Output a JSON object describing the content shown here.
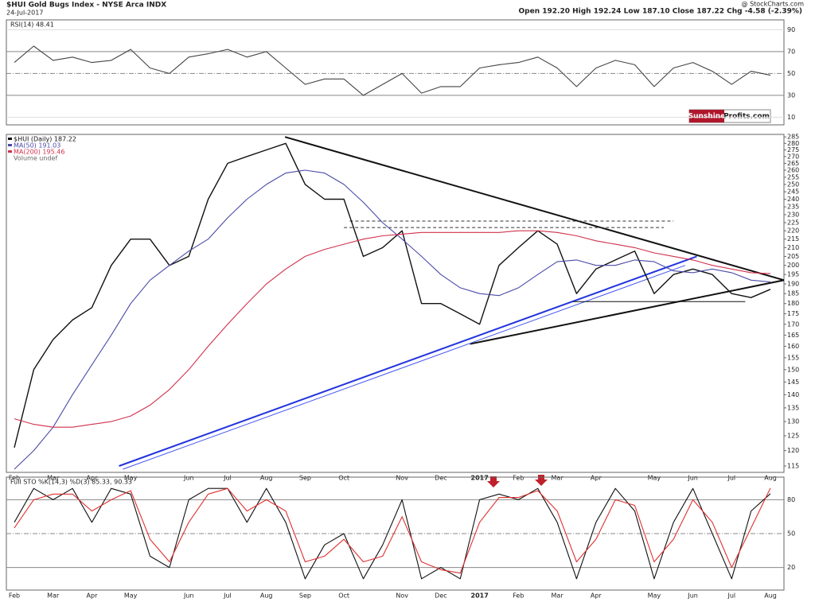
{
  "header": {
    "title": "$HUI Gold Bugs Index - NYSE Arca INDX",
    "date": "24-Jul-2017",
    "quote": "Open 192.20 High 192.24 Low 187.10 Close 187.22 Chg -4.58 (-2.39%)",
    "source": "@ StockCharts.com",
    "logo_left": "Sunshine",
    "logo_right": "Profits.com"
  },
  "chart_data": [
    {
      "type": "line",
      "legend": "RSI(14) 48.41",
      "ylim": [
        3,
        99
      ],
      "yticks": [
        10,
        30,
        50,
        70,
        90
      ],
      "tick_styles": [
        "light",
        "solid",
        "dashdot",
        "solid",
        "light"
      ],
      "series": [
        {
          "color": "#444444",
          "values": [
            60,
            75,
            62,
            65,
            60,
            62,
            72,
            55,
            50,
            65,
            68,
            72,
            65,
            70,
            55,
            40,
            45,
            45,
            30,
            40,
            50,
            32,
            38,
            38,
            55,
            58,
            60,
            65,
            55,
            38,
            55,
            62,
            58,
            38,
            55,
            60,
            52,
            40,
            52,
            48.41
          ]
        }
      ]
    },
    {
      "type": "line",
      "log": true,
      "ylim": [
        113,
        287
      ],
      "yticks": [
        115,
        120,
        125,
        130,
        135,
        140,
        145,
        150,
        155,
        160,
        165,
        170,
        175,
        180,
        185,
        190,
        195,
        200,
        205,
        210,
        215,
        220,
        225,
        230,
        235,
        240,
        245,
        250,
        255,
        260,
        265,
        270,
        275,
        280,
        285
      ],
      "categories": [
        "Feb",
        null,
        "Mar",
        null,
        "Apr",
        null,
        "May",
        null,
        null,
        "Jun",
        null,
        "Jul",
        null,
        "Aug",
        null,
        "Sep",
        null,
        "Oct",
        null,
        null,
        "Nov",
        null,
        "Dec",
        null,
        "2017",
        null,
        "Feb",
        null,
        "Mar",
        null,
        "Apr",
        null,
        null,
        "May",
        null,
        "Jun",
        null,
        "Jul",
        null,
        "Aug"
      ],
      "note": "Volume undef",
      "series": [
        {
          "name": "$HUI (Daily) 187.22",
          "color": "#111111",
          "values": [
            121,
            150,
            163,
            172,
            178,
            200,
            215,
            215,
            200,
            205,
            240,
            265,
            270,
            275,
            280,
            250,
            240,
            240,
            205,
            210,
            220,
            180,
            180,
            175,
            170,
            200,
            210,
            220,
            212,
            185,
            198,
            203,
            208,
            185,
            195,
            198,
            195,
            185,
            183,
            187.22
          ]
        },
        {
          "name": "MA(50) 191.03",
          "color": "#4a4aa8",
          "values": [
            114,
            120,
            128,
            140,
            152,
            165,
            180,
            192,
            200,
            208,
            215,
            228,
            240,
            250,
            258,
            260,
            258,
            250,
            238,
            225,
            215,
            205,
            195,
            188,
            185,
            184,
            188,
            195,
            202,
            203,
            200,
            200,
            203,
            202,
            197,
            196,
            198,
            196,
            192,
            191.03
          ]
        },
        {
          "name": "MA(200) 195.46",
          "color": "#d0304a",
          "values": [
            131,
            129,
            128,
            128,
            129,
            130,
            132,
            136,
            142,
            150,
            160,
            170,
            180,
            190,
            198,
            205,
            209,
            212,
            215,
            217,
            218,
            219,
            219,
            219,
            219,
            219,
            220,
            220,
            219,
            217,
            214,
            212,
            210,
            207,
            205,
            203,
            200,
            198,
            196,
            195.46
          ]
        }
      ],
      "trendlines": [
        {
          "color": "#111111",
          "style": "solid",
          "points": [
            [
              13.96,
              285
            ],
            [
              39.7,
              192
            ]
          ]
        },
        {
          "color": "#111111",
          "style": "solid",
          "points": [
            [
              23.5,
              161
            ],
            [
              39.7,
              192
            ]
          ]
        },
        {
          "color": "#2233dd",
          "style": "solid",
          "points": [
            [
              5.4,
              115
            ],
            [
              35.2,
              205
            ]
          ]
        },
        {
          "color": "#4455ee",
          "style": "thin",
          "points": [
            [
              5.6,
              114
            ],
            [
              34.6,
              200
            ]
          ]
        },
        {
          "color": "#111111",
          "style": "thin",
          "points": [
            [
              28.8,
              181
            ],
            [
              37.7,
              181
            ]
          ]
        },
        {
          "color": "#333333",
          "style": "dashed",
          "points": [
            [
              17.3,
              226
            ],
            [
              34,
              226
            ]
          ]
        },
        {
          "color": "#333333",
          "style": "dashed",
          "points": [
            [
              17,
              222
            ],
            [
              33.5,
              222
            ]
          ]
        }
      ]
    },
    {
      "type": "line",
      "legend": "Full STO %K(14,3) %D(3) 85.33, 90.33",
      "ylim": [
        0,
        100
      ],
      "yticks": [
        20,
        50,
        80
      ],
      "tick_styles": [
        "solid",
        "dashdot",
        "solid"
      ],
      "categories": [
        "Feb",
        null,
        "Mar",
        null,
        "Apr",
        null,
        "May",
        null,
        null,
        "Jun",
        null,
        "Jul",
        null,
        "Aug",
        null,
        "Sep",
        null,
        "Oct",
        null,
        null,
        "Nov",
        null,
        "Dec",
        null,
        "2017",
        null,
        "Feb",
        null,
        "Mar",
        null,
        "Apr",
        null,
        null,
        "May",
        null,
        "Jun",
        null,
        "Jul",
        null,
        "Aug"
      ],
      "series": [
        {
          "color": "#111111",
          "values": [
            60,
            90,
            80,
            90,
            60,
            90,
            85,
            30,
            20,
            80,
            90,
            90,
            60,
            90,
            60,
            10,
            40,
            50,
            10,
            40,
            80,
            10,
            20,
            10,
            80,
            85,
            80,
            90,
            60,
            10,
            60,
            90,
            70,
            10,
            60,
            90,
            50,
            10,
            70,
            85.33
          ]
        },
        {
          "color": "#e03030",
          "values": [
            55,
            80,
            85,
            85,
            70,
            80,
            88,
            45,
            25,
            60,
            85,
            90,
            70,
            80,
            70,
            25,
            30,
            45,
            25,
            30,
            65,
            25,
            18,
            15,
            60,
            82,
            82,
            88,
            70,
            25,
            45,
            80,
            75,
            25,
            45,
            80,
            60,
            20,
            55,
            90.33
          ]
        }
      ]
    }
  ]
}
